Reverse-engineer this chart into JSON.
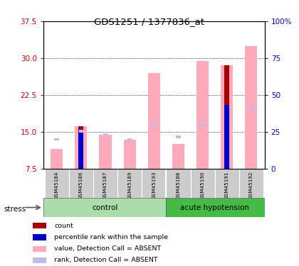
{
  "title": "GDS1251 / 1377836_at",
  "samples": [
    "GSM45184",
    "GSM45186",
    "GSM45187",
    "GSM45189",
    "GSM45193",
    "GSM45188",
    "GSM45190",
    "GSM45191",
    "GSM45192"
  ],
  "pink_bar_heights": [
    11.5,
    16.2,
    14.5,
    13.5,
    27.0,
    12.5,
    29.5,
    28.5,
    32.5
  ],
  "red_bar_heights": [
    0,
    16.2,
    0,
    0,
    0,
    0,
    0,
    28.5,
    0
  ],
  "blue_bar_heights": [
    0,
    15.1,
    0,
    0,
    0,
    0,
    0,
    20.5,
    0
  ],
  "lavender_heights": [
    13.5,
    15.1,
    14.5,
    13.5,
    16.5,
    14.0,
    16.5,
    0,
    20.0
  ],
  "ylim_left": [
    7.5,
    37.5
  ],
  "ylim_right": [
    0,
    100
  ],
  "yticks_left": [
    7.5,
    15.0,
    22.5,
    30.0,
    37.5
  ],
  "yticks_right": [
    0,
    25,
    50,
    75,
    100
  ],
  "bar_width": 0.5,
  "pink_color": "#FFAABB",
  "red_color": "#AA0000",
  "blue_color": "#0000CC",
  "lavender_color": "#BBBBEE",
  "left_ytick_color": "#CC0000",
  "right_ytick_color": "#0000CC",
  "bg_sample_labels": "#CCCCCC",
  "bg_group_control": "#AADDAA",
  "bg_group_hypo": "#44BB44",
  "stress_label": "stress"
}
